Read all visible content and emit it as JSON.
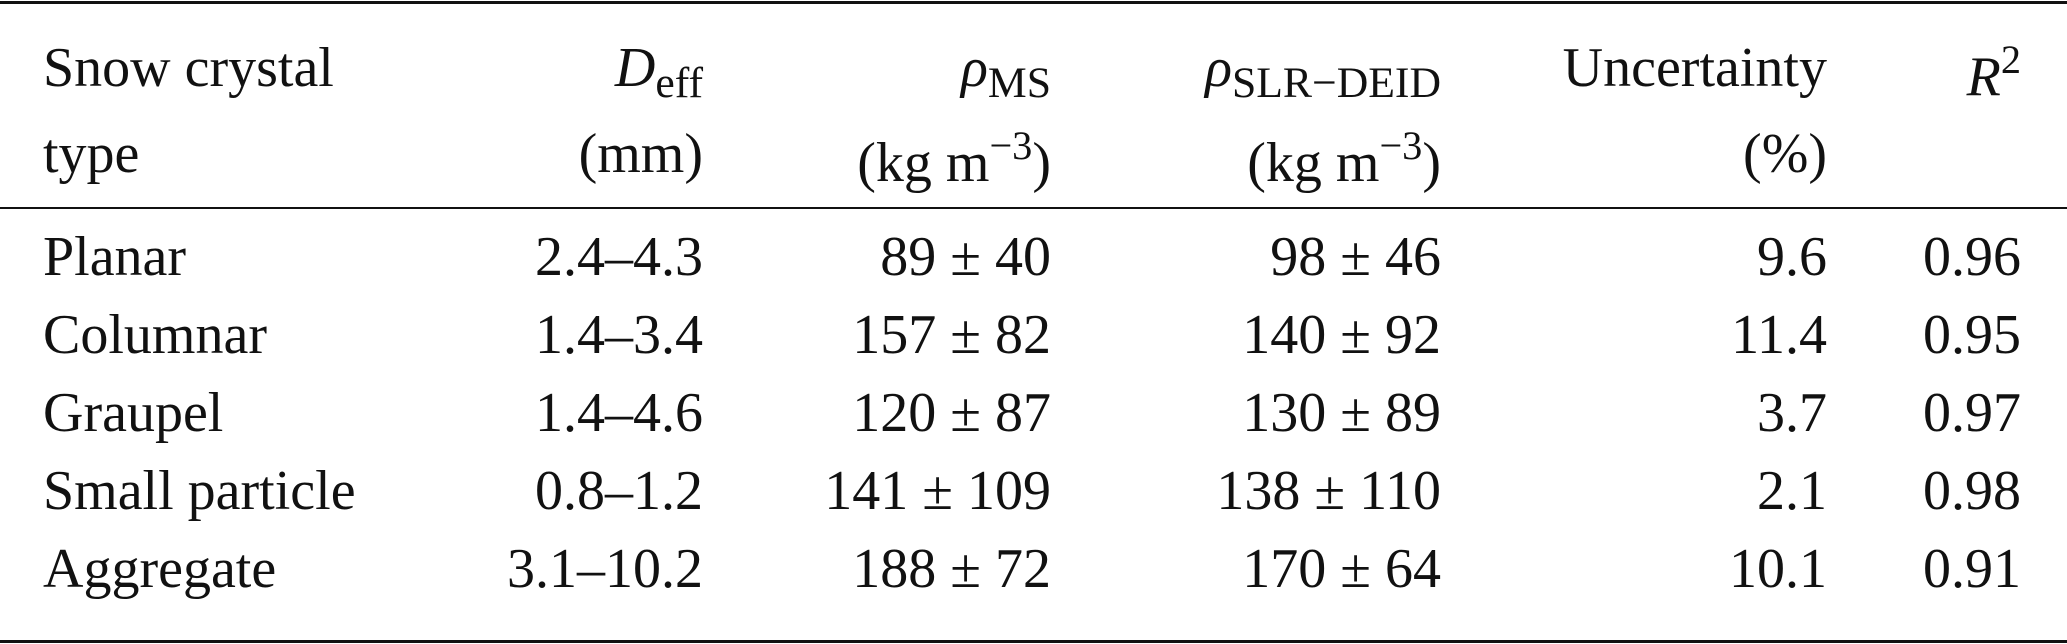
{
  "table": {
    "header": [
      {
        "lines": [
          "Snow crystal",
          "type"
        ]
      },
      {
        "symbol": "D",
        "subscript": "eff",
        "unit": "(mm)"
      },
      {
        "symbol": "ρ",
        "subscript": "MS",
        "unit": {
          "base": "(kg m",
          "sup": "−3",
          "close": ")"
        }
      },
      {
        "symbol": "ρ",
        "subscript": "SLR−DEID",
        "unit": {
          "base": "(kg m",
          "sup": "−3",
          "close": ")"
        }
      },
      {
        "lines": [
          "Uncertainty",
          "(%)"
        ]
      },
      {
        "symbol": "R",
        "superscript": "2"
      }
    ],
    "rows": [
      [
        "Planar",
        "2.4–4.3",
        "89 ± 40",
        "98 ± 46",
        "9.6",
        "0.96"
      ],
      [
        "Columnar",
        "1.4–3.4",
        "157 ± 82",
        "140 ± 92",
        "11.4",
        "0.95"
      ],
      [
        "Graupel",
        "1.4–4.6",
        "120 ± 87",
        "130 ± 89",
        "3.7",
        "0.97"
      ],
      [
        "Small particle",
        "0.8–1.2",
        "141 ± 109",
        "138 ± 110",
        "2.1",
        "0.98"
      ],
      [
        "Aggregate",
        "3.1–10.2",
        "188 ± 72",
        "170 ± 64",
        "10.1",
        "0.91"
      ]
    ]
  }
}
